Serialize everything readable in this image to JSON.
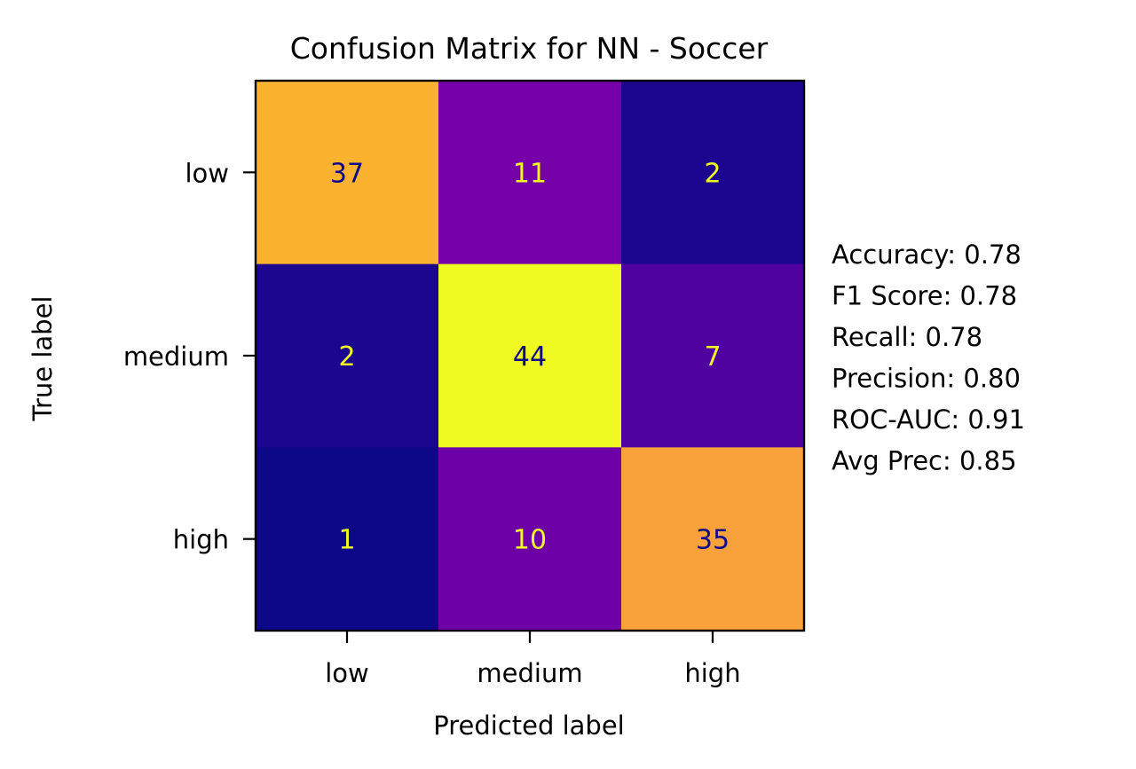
{
  "chart_data": {
    "type": "heatmap",
    "title": "Confusion Matrix for NN - Soccer",
    "xlabel": "Predicted label",
    "ylabel": "True label",
    "x_categories": [
      "low",
      "medium",
      "high"
    ],
    "y_categories": [
      "low",
      "medium",
      "high"
    ],
    "values": [
      [
        37,
        11,
        2
      ],
      [
        2,
        44,
        7
      ],
      [
        1,
        10,
        35
      ]
    ],
    "colormap": "plasma",
    "cell_colors": [
      [
        "#fbb32f",
        "#7601a8",
        "#1c068f"
      ],
      [
        "#1c068f",
        "#f0f921",
        "#4f029f"
      ],
      [
        "#0d0887",
        "#6e00a8",
        "#f9a13b"
      ]
    ],
    "text_colors": [
      [
        "#0d0887",
        "#f0f921",
        "#f0f921"
      ],
      [
        "#f0f921",
        "#0d0887",
        "#f0f921"
      ],
      [
        "#f0f921",
        "#f0f921",
        "#0d0887"
      ]
    ],
    "metrics": [
      "Accuracy: 0.78",
      "F1 Score: 0.78",
      "Recall: 0.78",
      "Precision: 0.80",
      "ROC-AUC: 0.91",
      "Avg Prec: 0.85"
    ]
  }
}
